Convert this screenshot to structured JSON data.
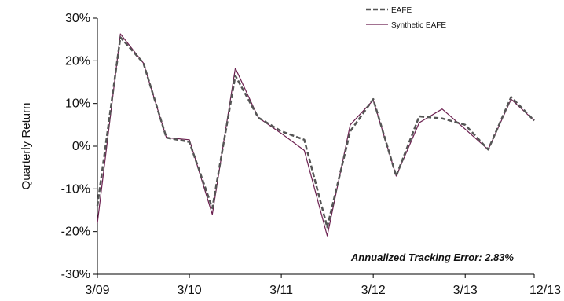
{
  "chart_data": {
    "type": "line",
    "title": "",
    "xlabel": "",
    "ylabel": "Quarterly Return",
    "ylim": [
      -30,
      30
    ],
    "yticks": [
      -30,
      -20,
      -10,
      0,
      10,
      20,
      30
    ],
    "ytick_labels": [
      "-30%",
      "-20%",
      "-10%",
      "0%",
      "10%",
      "20%",
      "30%"
    ],
    "x": [
      "3/09",
      "6/09",
      "9/09",
      "12/09",
      "3/10",
      "6/10",
      "9/10",
      "12/10",
      "3/11",
      "6/11",
      "9/11",
      "12/11",
      "3/12",
      "6/12",
      "9/12",
      "12/12",
      "3/13",
      "6/13",
      "9/13",
      "12/13"
    ],
    "xtick_labels": [
      "3/09",
      "3/10",
      "3/11",
      "3/12",
      "3/13",
      "12/13"
    ],
    "grid": false,
    "legend_position": "top-right",
    "series": [
      {
        "name": "EAFE",
        "color": "#555555",
        "style": "dashed",
        "values": [
          -14,
          25.5,
          19.5,
          2,
          1,
          -14.5,
          16.5,
          6.7,
          3.5,
          1.5,
          -19,
          3.5,
          11,
          -7,
          7,
          6.5,
          5,
          -0.8,
          11.5,
          6
        ]
      },
      {
        "name": "Synthetic EAFE",
        "color": "#6b1f4f",
        "style": "solid",
        "values": [
          -18,
          26.3,
          19.5,
          2,
          1.5,
          -16,
          18.3,
          6.7,
          3,
          -1,
          -21,
          5,
          10.8,
          -7,
          5.5,
          8.7,
          4,
          -0.8,
          11,
          6
        ]
      }
    ],
    "annotations": [
      "Annualized Tracking Error: 2.83%"
    ]
  }
}
